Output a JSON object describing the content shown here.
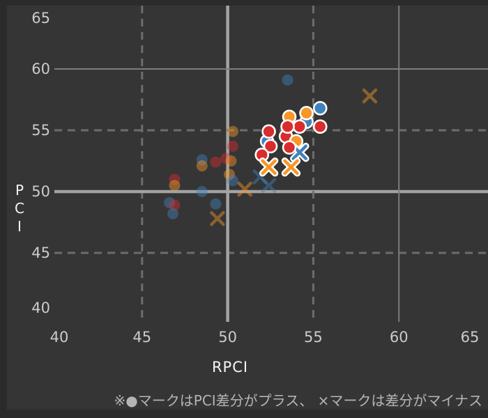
{
  "page": {
    "background": "#2b2b2b",
    "panel_background": "#353535"
  },
  "chart_data": {
    "type": "scatter",
    "xlabel": "RPCI",
    "ylabel": "PCI",
    "xlim": [
      40,
      65
    ],
    "ylim": [
      40,
      65
    ],
    "x_ticks": [
      40,
      45,
      50,
      55,
      60,
      65
    ],
    "y_ticks": [
      40,
      45,
      50,
      55,
      60,
      65
    ],
    "grid": {
      "solid_thick_at": 50,
      "solid_thin_at": 60,
      "dashed_at": [
        45,
        55
      ],
      "thick_color": "#a3a3a3",
      "thin_color": "#7d7d7d",
      "dashed_color": "#6d6d6d"
    },
    "colors": {
      "red": "#d92c2c",
      "orange": "#f79727",
      "blue": "#4181bc",
      "outline": "#ffffff"
    },
    "legend_note": "※●マークはPCI差分がプラス、 ×マークは差分がマイナス",
    "marker_meaning": {
      "circle": "PCI差分がプラス",
      "x": "差分がマイナス"
    },
    "points": [
      {
        "rpci": 53.5,
        "pci": 59.1,
        "group": "blue",
        "marker": "circle",
        "highlighted": false
      },
      {
        "rpci": 50.3,
        "pci": 54.9,
        "group": "orange",
        "marker": "circle",
        "highlighted": false
      },
      {
        "rpci": 50.3,
        "pci": 53.7,
        "group": "red",
        "marker": "circle",
        "highlighted": false
      },
      {
        "rpci": 49.9,
        "pci": 52.7,
        "group": "red",
        "marker": "circle",
        "highlighted": false
      },
      {
        "rpci": 50.2,
        "pci": 52.5,
        "group": "orange",
        "marker": "circle",
        "highlighted": false
      },
      {
        "rpci": 49.3,
        "pci": 52.4,
        "group": "red",
        "marker": "circle",
        "highlighted": false
      },
      {
        "rpci": 48.5,
        "pci": 52.6,
        "group": "blue",
        "marker": "circle",
        "highlighted": false
      },
      {
        "rpci": 48.5,
        "pci": 52.1,
        "group": "orange",
        "marker": "circle",
        "highlighted": false
      },
      {
        "rpci": 50.1,
        "pci": 51.4,
        "group": "orange",
        "marker": "circle",
        "highlighted": false
      },
      {
        "rpci": 50.3,
        "pci": 50.9,
        "group": "blue",
        "marker": "circle",
        "highlighted": false
      },
      {
        "rpci": 46.9,
        "pci": 51.0,
        "group": "red",
        "marker": "circle",
        "highlighted": false
      },
      {
        "rpci": 46.9,
        "pci": 50.5,
        "group": "orange",
        "marker": "circle",
        "highlighted": false
      },
      {
        "rpci": 48.5,
        "pci": 50.0,
        "group": "blue",
        "marker": "circle",
        "highlighted": false
      },
      {
        "rpci": 49.3,
        "pci": 49.0,
        "group": "blue",
        "marker": "circle",
        "highlighted": false
      },
      {
        "rpci": 46.6,
        "pci": 49.1,
        "group": "blue",
        "marker": "circle",
        "highlighted": false
      },
      {
        "rpci": 46.9,
        "pci": 48.9,
        "group": "red",
        "marker": "circle",
        "highlighted": false
      },
      {
        "rpci": 46.8,
        "pci": 48.2,
        "group": "blue",
        "marker": "circle",
        "highlighted": false
      },
      {
        "rpci": 51.0,
        "pci": 50.2,
        "group": "orange",
        "marker": "x",
        "highlighted": false
      },
      {
        "rpci": 51.9,
        "pci": 51.2,
        "group": "blue",
        "marker": "x",
        "highlighted": false
      },
      {
        "rpci": 52.4,
        "pci": 50.5,
        "group": "blue",
        "marker": "x",
        "highlighted": false
      },
      {
        "rpci": 49.4,
        "pci": 47.8,
        "group": "orange",
        "marker": "x",
        "highlighted": false
      },
      {
        "rpci": 58.3,
        "pci": 57.8,
        "group": "orange",
        "marker": "x",
        "highlighted": false
      },
      {
        "rpci": 53.6,
        "pci": 56.1,
        "group": "orange",
        "marker": "circle",
        "highlighted": true
      },
      {
        "rpci": 54.6,
        "pci": 55.7,
        "group": "blue",
        "marker": "circle",
        "highlighted": true
      },
      {
        "rpci": 53.4,
        "pci": 54.5,
        "group": "red",
        "marker": "circle",
        "highlighted": true
      },
      {
        "rpci": 54.6,
        "pci": 56.4,
        "group": "orange",
        "marker": "circle",
        "highlighted": true
      },
      {
        "rpci": 55.4,
        "pci": 56.8,
        "group": "blue",
        "marker": "circle",
        "highlighted": true
      },
      {
        "rpci": 54.2,
        "pci": 55.3,
        "group": "red",
        "marker": "circle",
        "highlighted": true
      },
      {
        "rpci": 53.5,
        "pci": 55.3,
        "group": "red",
        "marker": "circle",
        "highlighted": true
      },
      {
        "rpci": 55.4,
        "pci": 55.3,
        "group": "red",
        "marker": "circle",
        "highlighted": true
      },
      {
        "rpci": 52.3,
        "pci": 54.1,
        "group": "blue",
        "marker": "circle",
        "highlighted": true
      },
      {
        "rpci": 52.4,
        "pci": 54.9,
        "group": "red",
        "marker": "circle",
        "highlighted": true
      },
      {
        "rpci": 52.5,
        "pci": 53.7,
        "group": "red",
        "marker": "circle",
        "highlighted": true
      },
      {
        "rpci": 52.0,
        "pci": 53.0,
        "group": "red",
        "marker": "circle",
        "highlighted": true
      },
      {
        "rpci": 54.0,
        "pci": 54.1,
        "group": "orange",
        "marker": "circle",
        "highlighted": true
      },
      {
        "rpci": 54.2,
        "pci": 53.2,
        "group": "blue",
        "marker": "x",
        "highlighted": true
      },
      {
        "rpci": 53.6,
        "pci": 53.6,
        "group": "red",
        "marker": "circle",
        "highlighted": true
      },
      {
        "rpci": 52.4,
        "pci": 52.0,
        "group": "orange",
        "marker": "x",
        "highlighted": true
      },
      {
        "rpci": 53.7,
        "pci": 52.0,
        "group": "orange",
        "marker": "x",
        "highlighted": true
      }
    ]
  }
}
